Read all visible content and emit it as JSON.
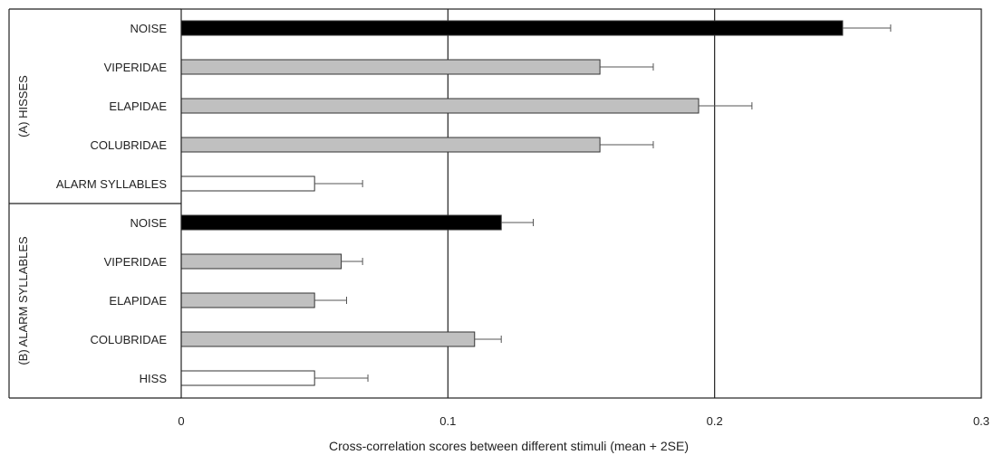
{
  "chart_data": {
    "type": "bar",
    "orientation": "horizontal",
    "xlabel": "Cross-correlation scores between different stimuli (mean + 2SE)",
    "xlim": [
      0,
      0.3
    ],
    "xticks": [
      0,
      0.1,
      0.2,
      0.3
    ],
    "xtick_labels": [
      "0",
      "0.1",
      "0.2",
      "0.3"
    ],
    "grid": "vertical lines at major ticks",
    "colors": {
      "black": "#000000",
      "grey": "#c0c0c0",
      "white": "#ffffff",
      "edge": "#333333"
    },
    "groups": [
      {
        "label": "(A)  HISSES",
        "bars": [
          {
            "category": "NOISE",
            "value": 0.248,
            "error": 0.018,
            "fill": "black"
          },
          {
            "category": "VIPERIDAE",
            "value": 0.157,
            "error": 0.02,
            "fill": "grey"
          },
          {
            "category": "ELAPIDAE",
            "value": 0.194,
            "error": 0.02,
            "fill": "grey"
          },
          {
            "category": "COLUBRIDAE",
            "value": 0.157,
            "error": 0.02,
            "fill": "grey"
          },
          {
            "category": "ALARM SYLLABLES",
            "value": 0.05,
            "error": 0.018,
            "fill": "white"
          }
        ]
      },
      {
        "label": "(B)  ALARM SYLLABLES",
        "bars": [
          {
            "category": "NOISE",
            "value": 0.12,
            "error": 0.012,
            "fill": "black"
          },
          {
            "category": "VIPERIDAE",
            "value": 0.06,
            "error": 0.008,
            "fill": "grey"
          },
          {
            "category": "ELAPIDAE",
            "value": 0.05,
            "error": 0.012,
            "fill": "grey"
          },
          {
            "category": "COLUBRIDAE",
            "value": 0.11,
            "error": 0.01,
            "fill": "grey"
          },
          {
            "category": "HISS",
            "value": 0.05,
            "error": 0.02,
            "fill": "white"
          }
        ]
      }
    ]
  }
}
